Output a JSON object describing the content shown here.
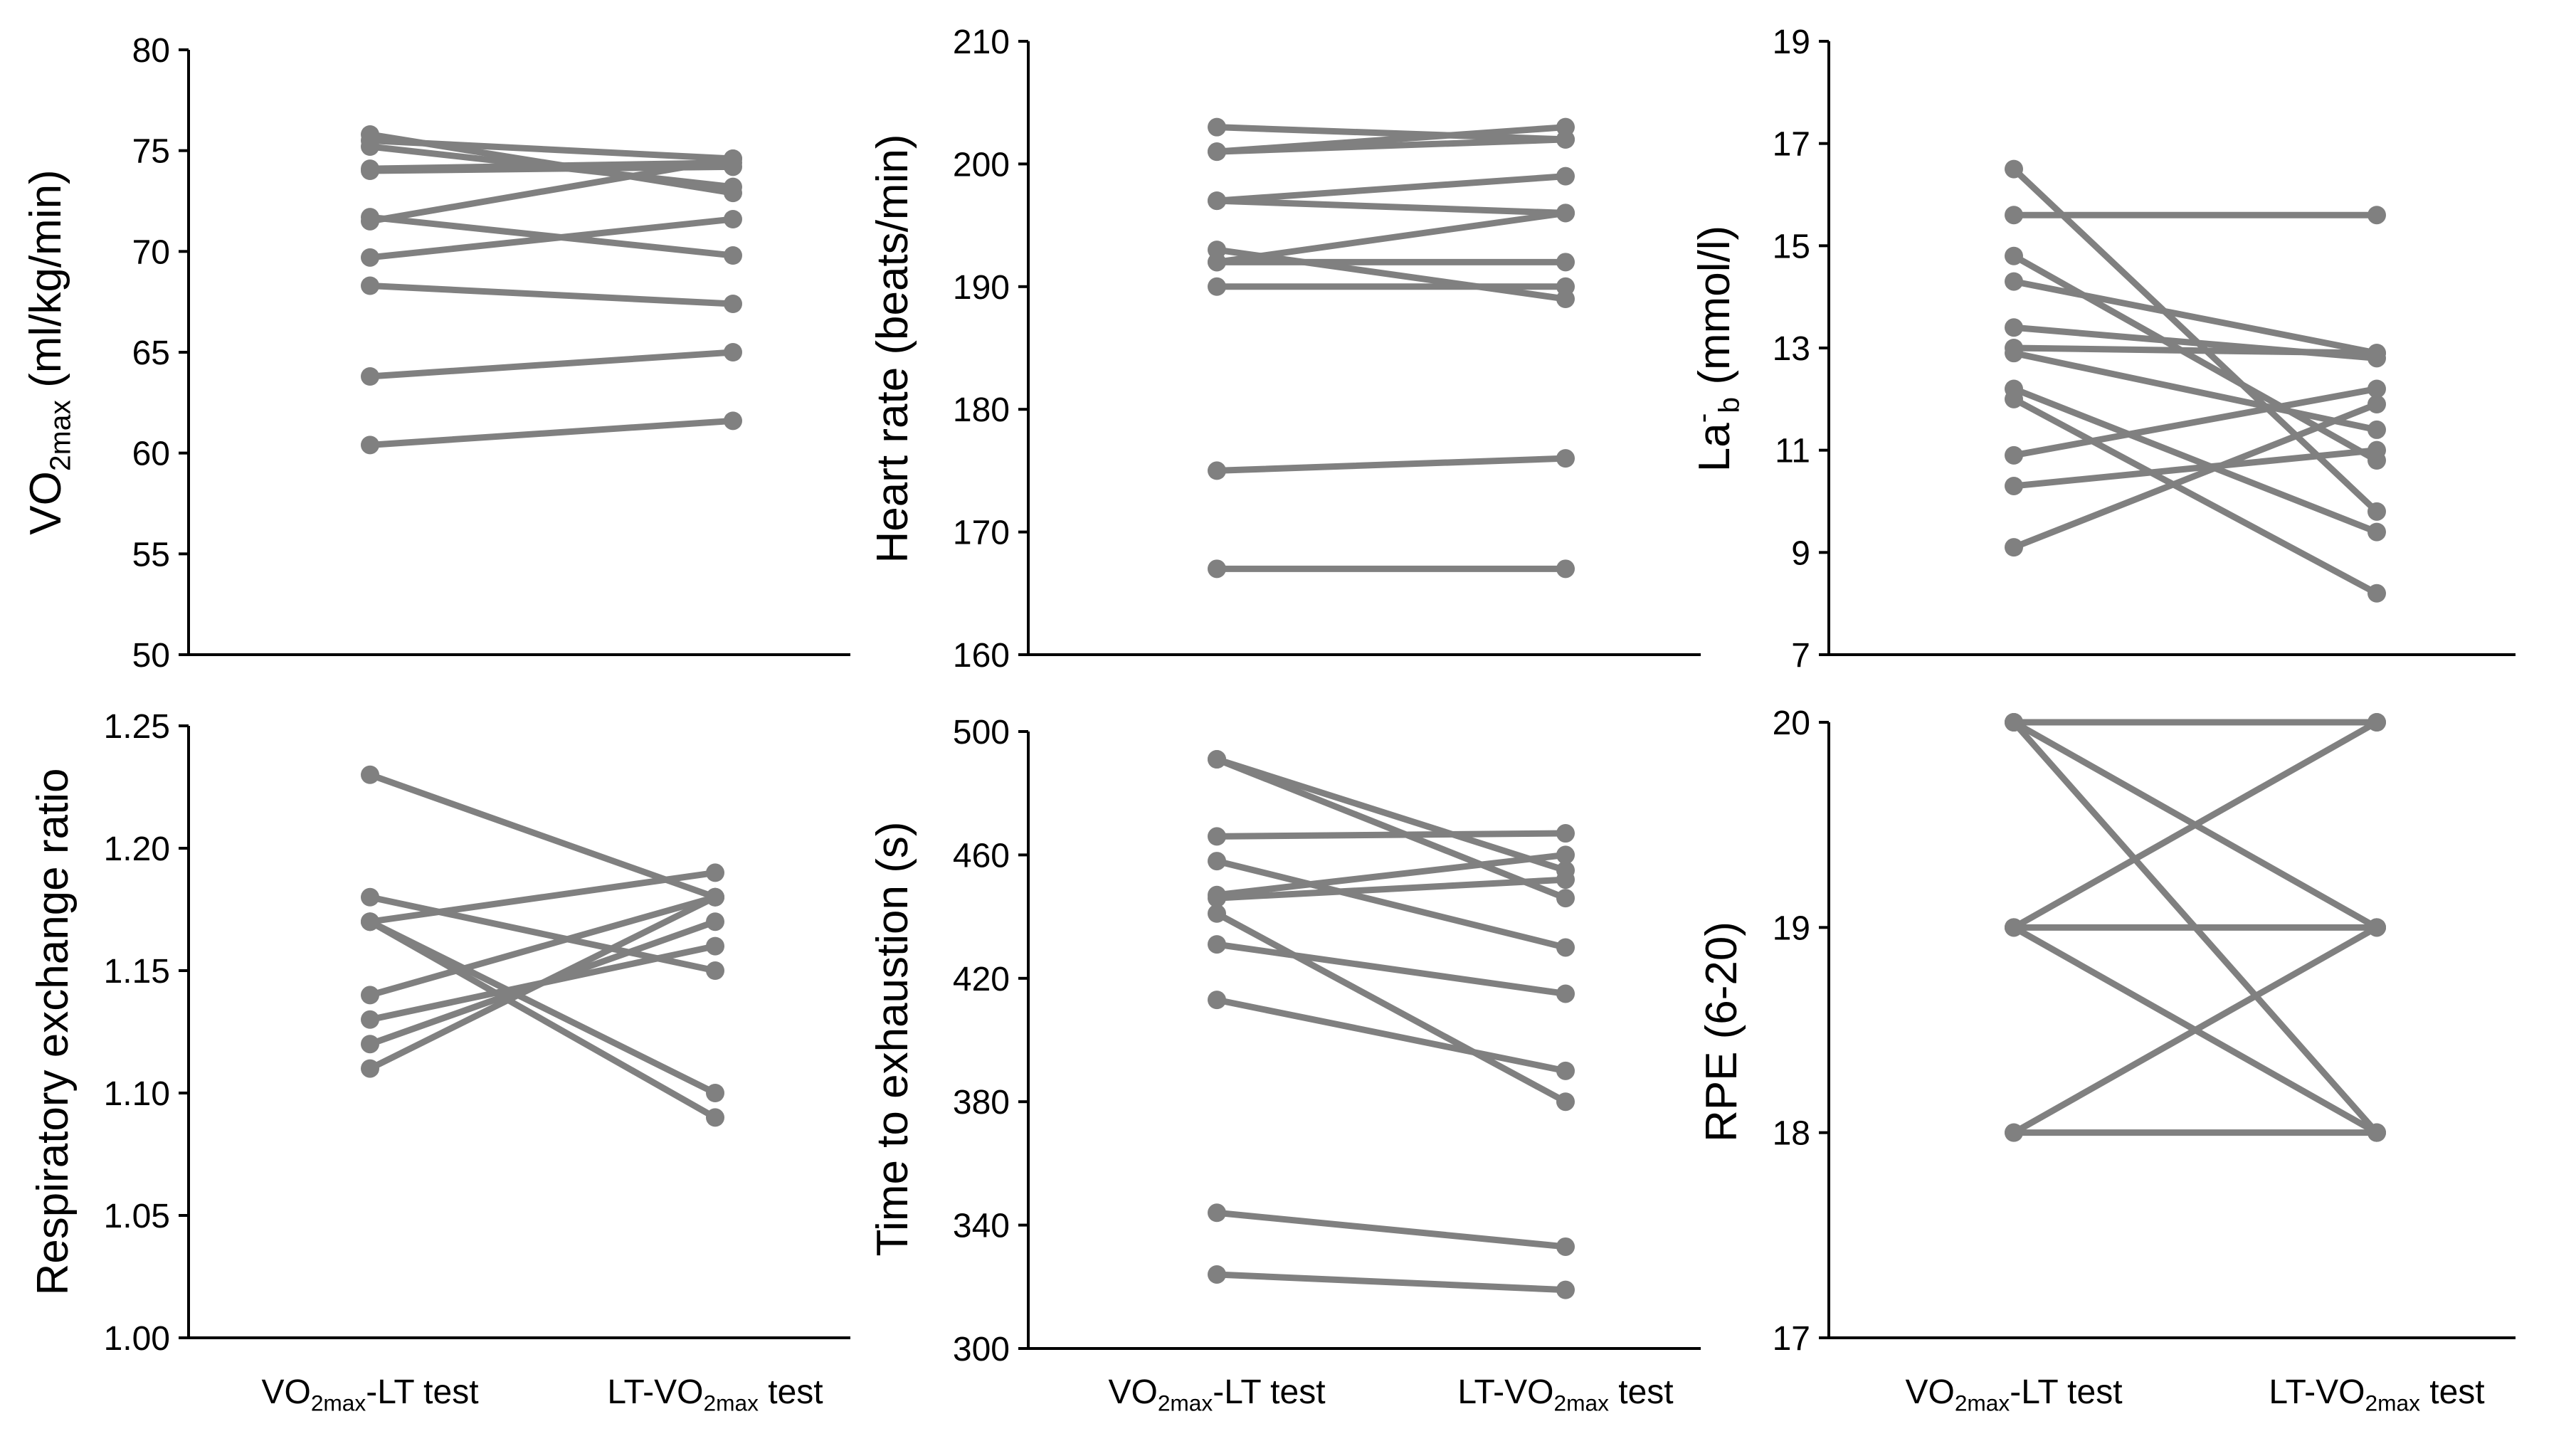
{
  "figure": {
    "line_color": "#808080",
    "axis_color": "#000000"
  },
  "chart_data": [
    {
      "id": "vo2max",
      "type": "line",
      "ylabel_parts": [
        [
          "VO",
          ""
        ],
        [
          "2max",
          "sub"
        ],
        [
          " (ml/kg/min)",
          ""
        ]
      ],
      "ylim": [
        50,
        80
      ],
      "yticks": [
        50,
        55,
        60,
        65,
        70,
        75,
        80
      ],
      "yticklabels": [
        "50",
        "55",
        "60",
        "65",
        "70",
        "75",
        "80"
      ],
      "categories": [
        [
          [
            "VO",
            ""
          ],
          [
            "2max",
            "sub"
          ],
          [
            "-LT test",
            ""
          ]
        ],
        [
          [
            "LT-VO",
            ""
          ],
          [
            "2max",
            "sub"
          ],
          [
            " test",
            ""
          ]
        ]
      ],
      "show_categories": false,
      "pairs": [
        [
          75.8,
          72.9
        ],
        [
          75.5,
          74.6
        ],
        [
          75.2,
          73.2
        ],
        [
          74.1,
          74.4
        ],
        [
          74.0,
          74.2
        ],
        [
          71.7,
          69.8
        ],
        [
          71.5,
          74.6
        ],
        [
          69.7,
          71.6
        ],
        [
          68.3,
          67.4
        ],
        [
          63.8,
          65.0
        ],
        [
          60.4,
          61.6
        ]
      ]
    },
    {
      "id": "heart-rate",
      "type": "line",
      "ylabel_parts": [
        [
          "Heart rate (beats/min)",
          ""
        ]
      ],
      "ylim": [
        160,
        210
      ],
      "yticks": [
        160,
        170,
        180,
        190,
        200,
        210
      ],
      "yticklabels": [
        "160",
        "170",
        "180",
        "190",
        "200",
        "210"
      ],
      "show_categories": false,
      "pairs": [
        [
          203,
          202
        ],
        [
          201,
          203
        ],
        [
          201,
          202
        ],
        [
          197,
          199
        ],
        [
          197,
          196
        ],
        [
          193,
          189
        ],
        [
          192,
          196
        ],
        [
          192,
          192
        ],
        [
          190,
          190
        ],
        [
          175,
          176
        ],
        [
          167,
          167
        ]
      ]
    },
    {
      "id": "lactate",
      "type": "line",
      "ylabel_parts": [
        [
          "La",
          ""
        ],
        [
          "-",
          "sup"
        ],
        [
          "b",
          "sub"
        ],
        [
          " (mmol/l)",
          ""
        ]
      ],
      "ylim": [
        7,
        19
      ],
      "yticks": [
        7,
        9,
        11,
        13,
        15,
        17,
        19
      ],
      "yticklabels": [
        "7",
        "9",
        "11",
        "13",
        "15",
        "17",
        "19"
      ],
      "show_categories": false,
      "pairs": [
        [
          16.5,
          9.8
        ],
        [
          15.6,
          15.6
        ],
        [
          14.8,
          10.8
        ],
        [
          14.3,
          12.9
        ],
        [
          13.4,
          12.8
        ],
        [
          13.0,
          12.9
        ],
        [
          12.2,
          9.4
        ],
        [
          12.0,
          8.2
        ],
        [
          10.9,
          12.2
        ],
        [
          10.3,
          11.0
        ],
        [
          9.1,
          11.9
        ],
        [
          12.9,
          11.4
        ]
      ]
    },
    {
      "id": "rer",
      "type": "line",
      "ylabel_parts": [
        [
          "Respiratory exchange ratio",
          ""
        ]
      ],
      "ylim": [
        1.0,
        1.25
      ],
      "yticks": [
        1.0,
        1.05,
        1.1,
        1.15,
        1.2,
        1.25
      ],
      "yticklabels": [
        "1.00",
        "1.05",
        "1.10",
        "1.15",
        "1.20",
        "1.25"
      ],
      "show_categories": true,
      "categories": [
        [
          [
            "VO",
            ""
          ],
          [
            "2max",
            "sub"
          ],
          [
            "-LT test",
            ""
          ]
        ],
        [
          [
            "LT-VO",
            ""
          ],
          [
            "2max",
            "sub"
          ],
          [
            " test",
            ""
          ]
        ]
      ],
      "pairs": [
        [
          1.23,
          1.18
        ],
        [
          1.18,
          1.15
        ],
        [
          1.17,
          1.19
        ],
        [
          1.17,
          1.1
        ],
        [
          1.17,
          1.09
        ],
        [
          1.14,
          1.18
        ],
        [
          1.13,
          1.16
        ],
        [
          1.12,
          1.17
        ],
        [
          1.11,
          1.18
        ]
      ]
    },
    {
      "id": "tte",
      "type": "line",
      "ylabel_parts": [
        [
          "Time to exhaustion (s)",
          ""
        ]
      ],
      "ylim": [
        300,
        500
      ],
      "yticks": [
        300,
        340,
        380,
        420,
        460,
        500
      ],
      "yticklabels": [
        "300",
        "340",
        "380",
        "420",
        "460",
        "500"
      ],
      "show_categories": true,
      "categories": [
        [
          [
            "VO",
            ""
          ],
          [
            "2max",
            "sub"
          ],
          [
            "-LT test",
            ""
          ]
        ],
        [
          [
            "LT-VO",
            ""
          ],
          [
            "2max",
            "sub"
          ],
          [
            " test",
            ""
          ]
        ]
      ],
      "pairs": [
        [
          491,
          455
        ],
        [
          491,
          446
        ],
        [
          466,
          467
        ],
        [
          458,
          430
        ],
        [
          447,
          460
        ],
        [
          446,
          452
        ],
        [
          441,
          380
        ],
        [
          431,
          415
        ],
        [
          413,
          390
        ],
        [
          344,
          333
        ],
        [
          324,
          319
        ]
      ]
    },
    {
      "id": "rpe",
      "type": "line",
      "ylabel_parts": [
        [
          "RPE (6-20)",
          ""
        ]
      ],
      "ylim": [
        17,
        20
      ],
      "yticks": [
        17,
        18,
        19,
        20
      ],
      "yticklabels": [
        "17",
        "18",
        "19",
        "20"
      ],
      "show_categories": true,
      "categories": [
        [
          [
            "VO",
            ""
          ],
          [
            "2max",
            "sub"
          ],
          [
            "-LT test",
            ""
          ]
        ],
        [
          [
            "LT-VO",
            ""
          ],
          [
            "2max",
            "sub"
          ],
          [
            " test",
            ""
          ]
        ]
      ],
      "pairs": [
        [
          20,
          20
        ],
        [
          20,
          19
        ],
        [
          20,
          18
        ],
        [
          19,
          20
        ],
        [
          19,
          19
        ],
        [
          19,
          18
        ],
        [
          18,
          19
        ],
        [
          18,
          18
        ]
      ]
    }
  ]
}
